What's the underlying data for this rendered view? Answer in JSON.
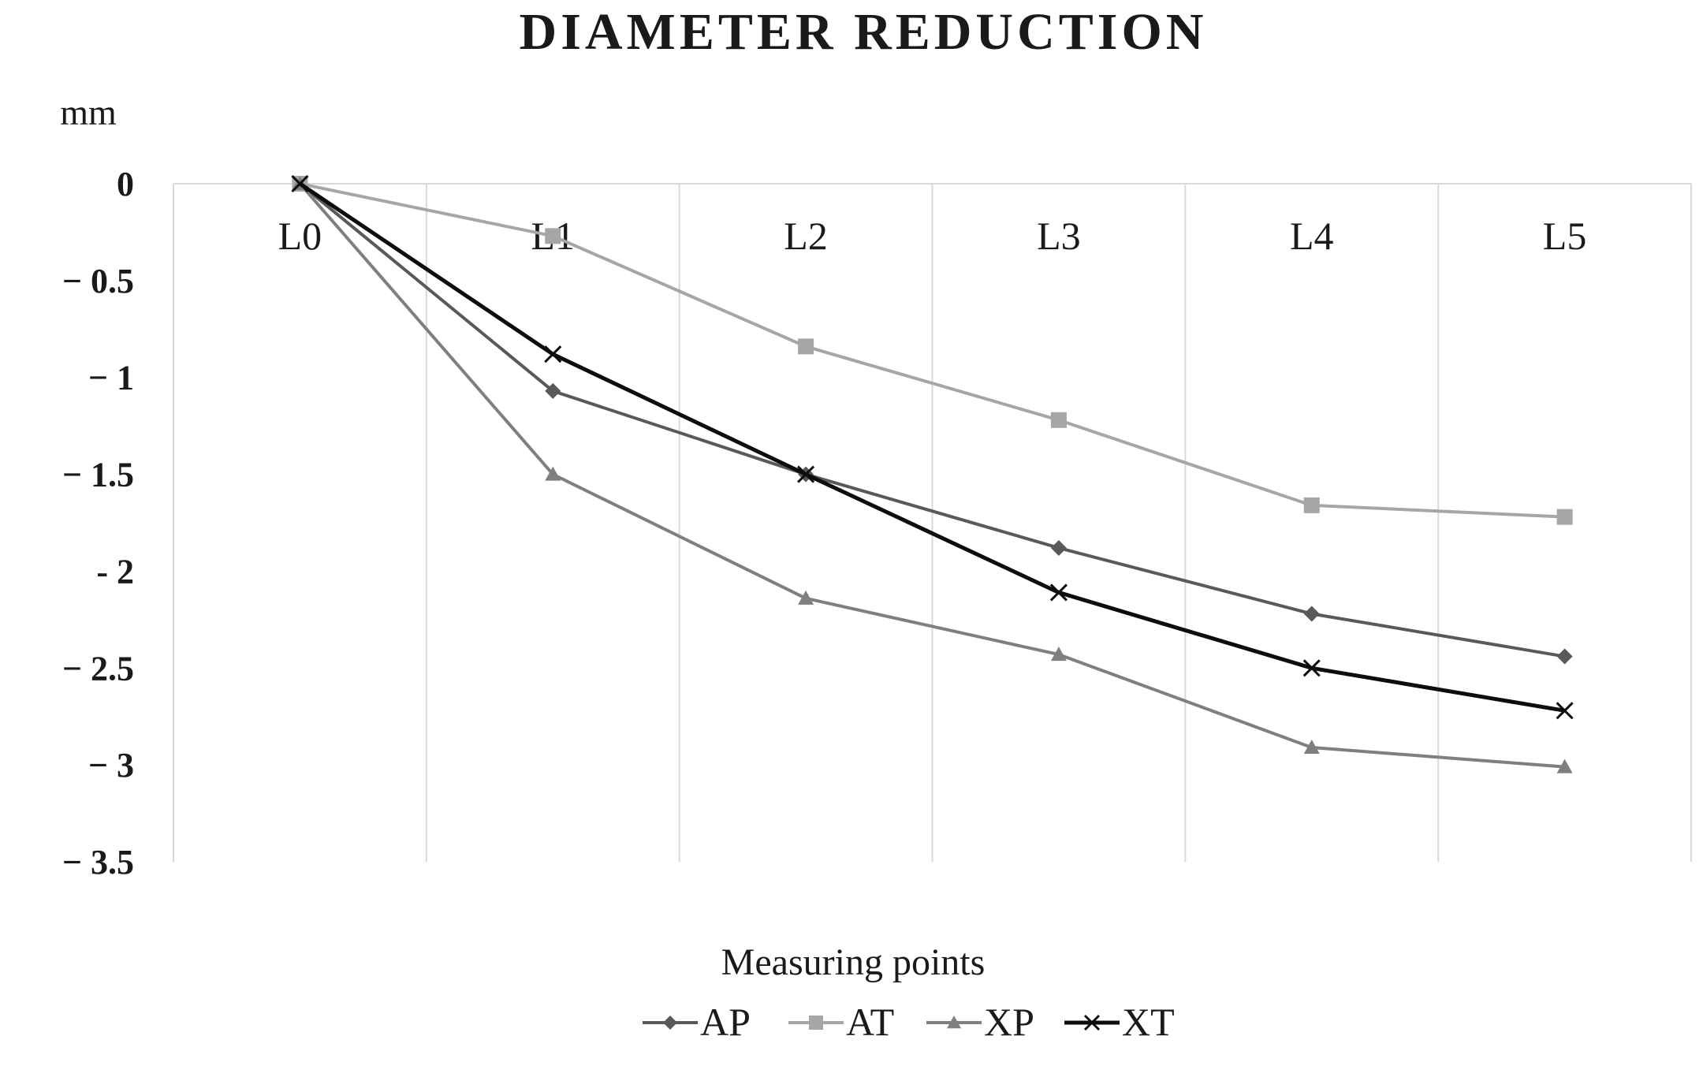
{
  "chart_data": {
    "type": "line",
    "title": "DIAMETER REDUCTION",
    "ylabel": "mm",
    "xlabel": "Measuring points",
    "categories": [
      "L0",
      "L1",
      "L2",
      "L3",
      "L4",
      "L5"
    ],
    "ylim": [
      -3.5,
      0
    ],
    "yticks": [
      0,
      -0.5,
      -1,
      -1.5,
      -2,
      -2.5,
      -3,
      -3.5
    ],
    "ytick_labels": [
      "0",
      "− 0.5",
      "− 1",
      "− 1.5",
      "- 2",
      "− 2.5",
      "− 3",
      "− 3.5"
    ],
    "grid": "vertical",
    "legend_position": "bottom",
    "series": [
      {
        "name": "AP",
        "values": [
          0,
          -1.07,
          -1.5,
          -1.88,
          -2.22,
          -2.44
        ],
        "color": "#595959",
        "marker": "diamond"
      },
      {
        "name": "AT",
        "values": [
          0,
          -0.27,
          -0.84,
          -1.22,
          -1.66,
          -1.72
        ],
        "color": "#a6a6a6",
        "marker": "square"
      },
      {
        "name": "XP",
        "values": [
          0,
          -1.5,
          -2.14,
          -2.43,
          -2.91,
          -3.01
        ],
        "color": "#7f7f7f",
        "marker": "triangle"
      },
      {
        "name": "XT",
        "values": [
          0,
          -0.88,
          -1.5,
          -2.11,
          -2.5,
          -2.72
        ],
        "color": "#0d0d0d",
        "marker": "x"
      }
    ]
  }
}
